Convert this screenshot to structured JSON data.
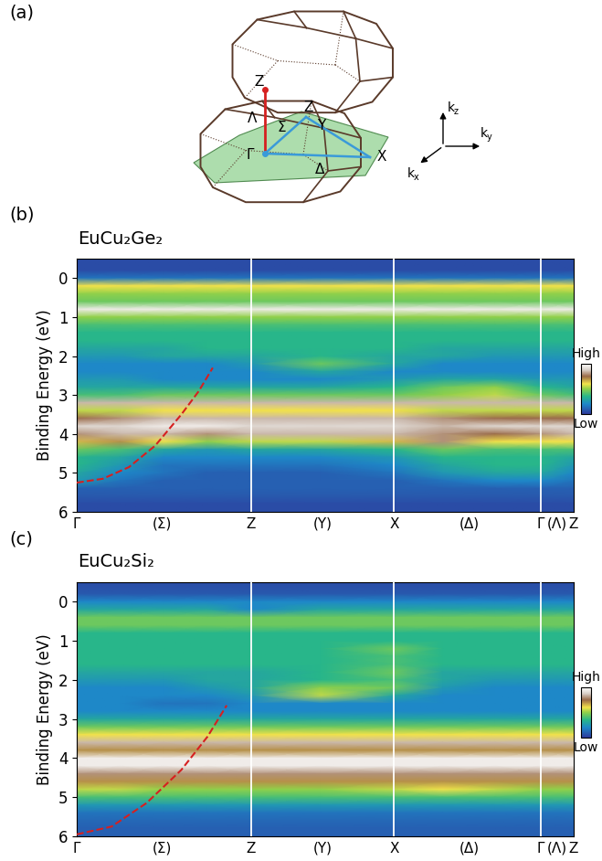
{
  "diagram": {
    "panel_label": "(a)",
    "point_labels": [
      "Z",
      "Λ",
      "Γ",
      "Σ",
      "Z",
      "Y",
      "X",
      "Δ"
    ],
    "axis_labels": [
      {
        "base": "k",
        "sub": "z"
      },
      {
        "base": "k",
        "sub": "y"
      },
      {
        "base": "k",
        "sub": "x"
      }
    ]
  },
  "chart_data": [
    {
      "type": "heatmap",
      "panel_label": "(b)",
      "title": "EuCu₂Ge₂",
      "y_label": "Binding Energy (eV)",
      "x": [
        0,
        0.25,
        0.5,
        0.75,
        1.0,
        1.4,
        1.82,
        2.1,
        2.4,
        2.66,
        2.85
      ],
      "y": [
        -0.5,
        -0.2,
        0.0,
        0.2,
        0.4,
        0.6,
        0.8,
        1.0,
        1.2,
        1.4,
        1.6,
        1.8,
        2.0,
        2.2,
        2.4,
        2.6,
        2.8,
        3.0,
        3.2,
        3.4,
        3.6,
        3.8,
        4.0,
        4.2,
        4.4,
        4.6,
        4.8,
        5.0,
        5.2,
        5.4,
        5.6,
        5.8,
        6.0
      ],
      "cells": [
        [
          0.05,
          0.05,
          0.05,
          0.05,
          0.05,
          0.05,
          0.05,
          0.05,
          0.05,
          0.05,
          0.05
        ],
        [
          0.05,
          0.05,
          0.05,
          0.05,
          0.05,
          0.05,
          0.05,
          0.05,
          0.05,
          0.05,
          0.05
        ],
        [
          0.15,
          0.15,
          0.15,
          0.15,
          0.15,
          0.15,
          0.15,
          0.15,
          0.15,
          0.15,
          0.15
        ],
        [
          0.6,
          0.6,
          0.6,
          0.6,
          0.6,
          0.6,
          0.6,
          0.6,
          0.6,
          0.6,
          0.6
        ],
        [
          0.5,
          0.5,
          0.5,
          0.5,
          0.5,
          0.5,
          0.5,
          0.5,
          0.5,
          0.5,
          0.5
        ],
        [
          0.45,
          0.45,
          0.45,
          0.45,
          0.45,
          0.45,
          0.45,
          0.45,
          0.45,
          0.45,
          0.45
        ],
        [
          0.95,
          0.95,
          0.95,
          0.95,
          0.95,
          0.95,
          0.95,
          0.95,
          0.95,
          0.95,
          0.95
        ],
        [
          0.5,
          0.5,
          0.5,
          0.5,
          0.5,
          0.5,
          0.5,
          0.5,
          0.5,
          0.5,
          0.5
        ],
        [
          0.4,
          0.4,
          0.4,
          0.4,
          0.4,
          0.4,
          0.4,
          0.4,
          0.4,
          0.4,
          0.4
        ],
        [
          0.35,
          0.35,
          0.35,
          0.35,
          0.35,
          0.35,
          0.35,
          0.35,
          0.35,
          0.35,
          0.35
        ],
        [
          0.35,
          0.35,
          0.35,
          0.35,
          0.35,
          0.35,
          0.35,
          0.35,
          0.35,
          0.35,
          0.35
        ],
        [
          0.3,
          0.3,
          0.3,
          0.35,
          0.35,
          0.35,
          0.35,
          0.3,
          0.3,
          0.3,
          0.3
        ],
        [
          0.25,
          0.25,
          0.3,
          0.3,
          0.3,
          0.35,
          0.3,
          0.3,
          0.25,
          0.25,
          0.25
        ],
        [
          0.2,
          0.2,
          0.2,
          0.2,
          0.25,
          0.45,
          0.3,
          0.2,
          0.2,
          0.2,
          0.2
        ],
        [
          0.2,
          0.2,
          0.2,
          0.2,
          0.2,
          0.3,
          0.2,
          0.2,
          0.2,
          0.2,
          0.2
        ],
        [
          0.25,
          0.25,
          0.2,
          0.2,
          0.2,
          0.2,
          0.25,
          0.3,
          0.3,
          0.25,
          0.25
        ],
        [
          0.3,
          0.3,
          0.3,
          0.3,
          0.3,
          0.3,
          0.35,
          0.45,
          0.5,
          0.35,
          0.3
        ],
        [
          0.4,
          0.4,
          0.45,
          0.45,
          0.45,
          0.45,
          0.45,
          0.5,
          0.55,
          0.45,
          0.4
        ],
        [
          0.85,
          0.85,
          0.85,
          0.85,
          0.85,
          0.85,
          0.85,
          0.85,
          0.85,
          0.85,
          0.85
        ],
        [
          0.55,
          0.55,
          0.6,
          0.6,
          0.6,
          0.6,
          0.6,
          0.55,
          0.55,
          0.55,
          0.55
        ],
        [
          0.75,
          0.8,
          0.85,
          0.85,
          0.85,
          0.85,
          0.85,
          0.8,
          0.75,
          0.75,
          0.75
        ],
        [
          0.9,
          0.9,
          0.95,
          0.95,
          0.9,
          0.9,
          0.9,
          0.85,
          0.9,
          0.9,
          0.9
        ],
        [
          0.8,
          0.85,
          0.85,
          0.8,
          0.85,
          0.85,
          0.85,
          0.8,
          0.75,
          0.8,
          0.85
        ],
        [
          0.65,
          0.7,
          0.6,
          0.5,
          0.55,
          0.55,
          0.65,
          0.8,
          0.6,
          0.6,
          0.6
        ],
        [
          0.45,
          0.4,
          0.3,
          0.25,
          0.3,
          0.3,
          0.35,
          0.45,
          0.4,
          0.4,
          0.4
        ],
        [
          0.35,
          0.3,
          0.2,
          0.2,
          0.2,
          0.2,
          0.25,
          0.35,
          0.35,
          0.35,
          0.3
        ],
        [
          0.35,
          0.25,
          0.15,
          0.15,
          0.15,
          0.15,
          0.2,
          0.3,
          0.35,
          0.35,
          0.25
        ],
        [
          0.3,
          0.2,
          0.15,
          0.1,
          0.1,
          0.1,
          0.15,
          0.25,
          0.3,
          0.3,
          0.2
        ],
        [
          0.25,
          0.15,
          0.1,
          0.1,
          0.1,
          0.1,
          0.1,
          0.15,
          0.2,
          0.2,
          0.15
        ],
        [
          0.1,
          0.1,
          0.1,
          0.1,
          0.1,
          0.1,
          0.1,
          0.1,
          0.1,
          0.1,
          0.1
        ],
        [
          0.08,
          0.08,
          0.08,
          0.08,
          0.08,
          0.08,
          0.08,
          0.08,
          0.08,
          0.08,
          0.08
        ],
        [
          0.05,
          0.05,
          0.05,
          0.05,
          0.05,
          0.05,
          0.05,
          0.05,
          0.05,
          0.05,
          0.05
        ],
        [
          0.05,
          0.05,
          0.05,
          0.05,
          0.05,
          0.05,
          0.05,
          0.05,
          0.05,
          0.05,
          0.05
        ]
      ],
      "xlim": [
        0,
        2.85
      ],
      "ylim": [
        6,
        -0.5
      ],
      "xticks": [
        {
          "value": 0,
          "label": "Γ"
        },
        {
          "value": 0.49,
          "label": "(Σ)"
        },
        {
          "value": 1.0,
          "label": "Z"
        },
        {
          "value": 1.41,
          "label": "(Y)"
        },
        {
          "value": 1.82,
          "label": "X"
        },
        {
          "value": 2.25,
          "label": "(Δ)"
        },
        {
          "value": 2.66,
          "label": "Γ"
        },
        {
          "value": 2.755,
          "label": "(Λ)"
        },
        {
          "value": 2.85,
          "label": "Z"
        }
      ],
      "yticks": [
        0,
        1,
        2,
        3,
        4,
        5,
        6
      ],
      "colorbar": {
        "range": [
          0,
          1
        ],
        "ticks": [
          {
            "value": 1,
            "label": "High"
          },
          {
            "value": 0,
            "label": "Low"
          }
        ]
      },
      "dashed_curve": {
        "x": [
          0,
          0.15,
          0.3,
          0.45,
          0.6,
          0.7,
          0.78
        ],
        "y": [
          5.25,
          5.15,
          4.85,
          4.3,
          3.5,
          2.9,
          2.3
        ],
        "color": "#d62020",
        "line_style": "dashed"
      }
    },
    {
      "type": "heatmap",
      "panel_label": "(c)",
      "title": "EuCu₂Si₂",
      "y_label": "Binding Energy (eV)",
      "x": [
        0,
        0.25,
        0.5,
        0.75,
        1.0,
        1.4,
        1.82,
        2.1,
        2.4,
        2.66,
        2.85
      ],
      "y": [
        -0.5,
        -0.2,
        0.0,
        0.2,
        0.4,
        0.6,
        0.8,
        1.0,
        1.2,
        1.4,
        1.6,
        1.8,
        2.0,
        2.2,
        2.4,
        2.6,
        2.8,
        3.0,
        3.2,
        3.4,
        3.6,
        3.8,
        4.0,
        4.2,
        4.4,
        4.6,
        4.8,
        5.0,
        5.2,
        5.4,
        5.6,
        5.8,
        6.0
      ],
      "cells": [
        [
          0.05,
          0.05,
          0.05,
          0.05,
          0.05,
          0.05,
          0.05,
          0.05,
          0.05,
          0.05,
          0.05
        ],
        [
          0.08,
          0.08,
          0.08,
          0.08,
          0.08,
          0.08,
          0.08,
          0.08,
          0.08,
          0.08,
          0.08
        ],
        [
          0.2,
          0.2,
          0.2,
          0.2,
          0.2,
          0.2,
          0.2,
          0.2,
          0.2,
          0.2,
          0.2
        ],
        [
          0.3,
          0.3,
          0.3,
          0.3,
          0.2,
          0.3,
          0.3,
          0.3,
          0.3,
          0.3,
          0.3
        ],
        [
          0.45,
          0.45,
          0.45,
          0.45,
          0.45,
          0.45,
          0.45,
          0.45,
          0.45,
          0.45,
          0.45
        ],
        [
          0.45,
          0.45,
          0.45,
          0.45,
          0.45,
          0.45,
          0.45,
          0.45,
          0.45,
          0.45,
          0.45
        ],
        [
          0.35,
          0.35,
          0.35,
          0.35,
          0.35,
          0.35,
          0.35,
          0.35,
          0.35,
          0.35,
          0.35
        ],
        [
          0.35,
          0.35,
          0.35,
          0.35,
          0.35,
          0.35,
          0.35,
          0.35,
          0.35,
          0.35,
          0.35
        ],
        [
          0.35,
          0.35,
          0.35,
          0.35,
          0.35,
          0.35,
          0.45,
          0.35,
          0.35,
          0.35,
          0.35
        ],
        [
          0.35,
          0.35,
          0.35,
          0.35,
          0.35,
          0.35,
          0.4,
          0.35,
          0.35,
          0.35,
          0.35
        ],
        [
          0.35,
          0.35,
          0.35,
          0.35,
          0.35,
          0.35,
          0.4,
          0.35,
          0.35,
          0.35,
          0.35
        ],
        [
          0.3,
          0.3,
          0.3,
          0.3,
          0.3,
          0.35,
          0.45,
          0.3,
          0.3,
          0.3,
          0.3
        ],
        [
          0.25,
          0.25,
          0.25,
          0.3,
          0.3,
          0.35,
          0.4,
          0.3,
          0.25,
          0.25,
          0.25
        ],
        [
          0.2,
          0.2,
          0.2,
          0.25,
          0.3,
          0.5,
          0.45,
          0.25,
          0.2,
          0.2,
          0.2
        ],
        [
          0.2,
          0.2,
          0.2,
          0.2,
          0.25,
          0.55,
          0.3,
          0.2,
          0.2,
          0.2,
          0.2
        ],
        [
          0.2,
          0.2,
          0.15,
          0.15,
          0.2,
          0.2,
          0.2,
          0.2,
          0.2,
          0.2,
          0.2
        ],
        [
          0.2,
          0.2,
          0.2,
          0.2,
          0.2,
          0.2,
          0.2,
          0.2,
          0.2,
          0.2,
          0.2
        ],
        [
          0.3,
          0.3,
          0.3,
          0.3,
          0.3,
          0.3,
          0.3,
          0.3,
          0.3,
          0.3,
          0.3
        ],
        [
          0.45,
          0.45,
          0.45,
          0.45,
          0.45,
          0.45,
          0.45,
          0.45,
          0.45,
          0.45,
          0.45
        ],
        [
          0.6,
          0.6,
          0.6,
          0.6,
          0.6,
          0.6,
          0.6,
          0.6,
          0.6,
          0.6,
          0.6
        ],
        [
          0.85,
          0.85,
          0.85,
          0.85,
          0.85,
          0.85,
          0.85,
          0.85,
          0.85,
          0.85,
          0.85
        ],
        [
          0.7,
          0.7,
          0.7,
          0.7,
          0.7,
          0.7,
          0.7,
          0.7,
          0.7,
          0.7,
          0.7
        ],
        [
          0.95,
          0.95,
          0.95,
          0.95,
          0.95,
          0.95,
          0.95,
          0.95,
          0.95,
          0.95,
          0.95
        ],
        [
          0.95,
          0.95,
          0.95,
          0.95,
          0.95,
          0.95,
          0.95,
          0.95,
          0.95,
          0.95,
          0.95
        ],
        [
          0.8,
          0.8,
          0.8,
          0.8,
          0.8,
          0.8,
          0.8,
          0.8,
          0.8,
          0.8,
          0.8
        ],
        [
          0.7,
          0.7,
          0.7,
          0.7,
          0.7,
          0.7,
          0.7,
          0.7,
          0.7,
          0.7,
          0.7
        ],
        [
          0.55,
          0.55,
          0.5,
          0.5,
          0.5,
          0.5,
          0.55,
          0.6,
          0.55,
          0.5,
          0.5
        ],
        [
          0.4,
          0.4,
          0.4,
          0.4,
          0.4,
          0.4,
          0.4,
          0.4,
          0.4,
          0.4,
          0.4
        ],
        [
          0.25,
          0.25,
          0.25,
          0.25,
          0.25,
          0.25,
          0.25,
          0.25,
          0.25,
          0.25,
          0.25
        ],
        [
          0.15,
          0.15,
          0.15,
          0.15,
          0.15,
          0.15,
          0.15,
          0.15,
          0.15,
          0.15,
          0.15
        ],
        [
          0.12,
          0.12,
          0.12,
          0.12,
          0.12,
          0.12,
          0.12,
          0.12,
          0.12,
          0.12,
          0.12
        ],
        [
          0.1,
          0.1,
          0.1,
          0.1,
          0.1,
          0.1,
          0.1,
          0.1,
          0.1,
          0.1,
          0.1
        ],
        [
          0.1,
          0.1,
          0.1,
          0.1,
          0.1,
          0.1,
          0.1,
          0.1,
          0.1,
          0.1,
          0.1
        ]
      ],
      "xlim": [
        0,
        2.85
      ],
      "ylim": [
        6,
        -0.5
      ],
      "xticks": [
        {
          "value": 0,
          "label": "Γ"
        },
        {
          "value": 0.49,
          "label": "(Σ)"
        },
        {
          "value": 1.0,
          "label": "Z"
        },
        {
          "value": 1.41,
          "label": "(Y)"
        },
        {
          "value": 1.82,
          "label": "X"
        },
        {
          "value": 2.25,
          "label": "(Δ)"
        },
        {
          "value": 2.66,
          "label": "Γ"
        },
        {
          "value": 2.755,
          "label": "(Λ)"
        },
        {
          "value": 2.85,
          "label": "Z"
        }
      ],
      "yticks": [
        0,
        1,
        2,
        3,
        4,
        5,
        6
      ],
      "colorbar": {
        "range": [
          0,
          1
        ],
        "ticks": [
          {
            "value": 1,
            "label": "High"
          },
          {
            "value": 0,
            "label": "Low"
          }
        ]
      },
      "dashed_curve": {
        "x": [
          0,
          0.2,
          0.4,
          0.6,
          0.75,
          0.86
        ],
        "y": [
          5.95,
          5.75,
          5.15,
          4.3,
          3.45,
          2.65
        ],
        "color": "#d62020",
        "line_style": "dashed"
      }
    }
  ]
}
